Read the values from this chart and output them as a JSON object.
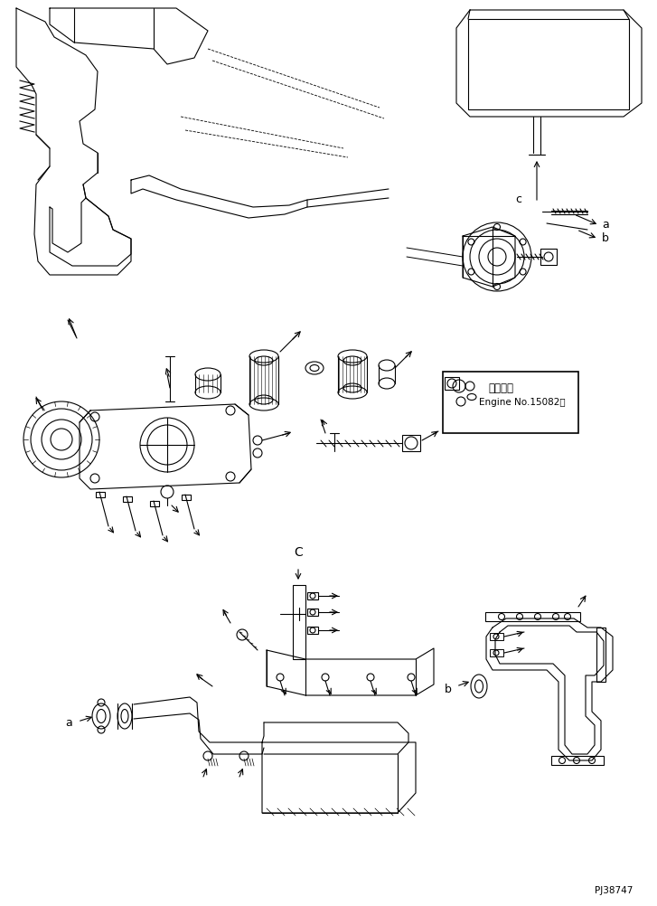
{
  "background_color": "#ffffff",
  "line_color": "#000000",
  "watermark": "PJ38747",
  "box_text_line1": "適用号機",
  "box_text_line2": "Engine No.15082～"
}
